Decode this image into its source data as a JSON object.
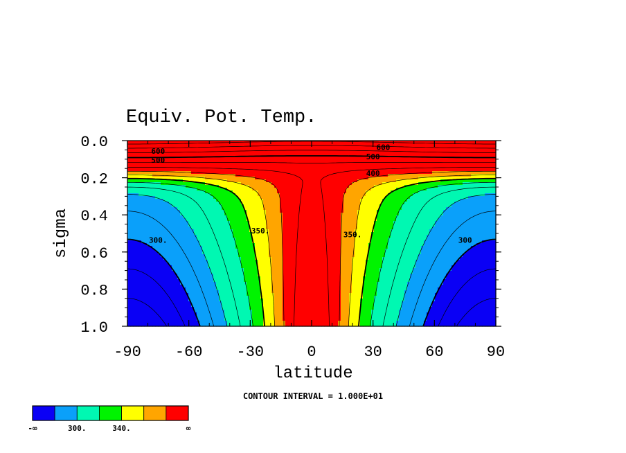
{
  "chart_data": {
    "type": "heatmap",
    "title": "Equiv. Pot. Temp.",
    "xlabel": "latitude",
    "ylabel": "sigma",
    "xlim": [
      -90,
      90
    ],
    "ylim": [
      1.0,
      0.0
    ],
    "x_ticks": [
      "-90",
      "-60",
      "-30",
      "0",
      "30",
      "60",
      "90"
    ],
    "x_tick_values": [
      -90,
      -60,
      -30,
      0,
      30,
      60,
      90
    ],
    "y_ticks": [
      "0.0",
      "0.2",
      "0.4",
      "0.6",
      "0.8",
      "1.0"
    ],
    "y_tick_values": [
      0.0,
      0.2,
      0.4,
      0.6,
      0.8,
      1.0
    ],
    "footer": "CONTOUR INTERVAL = 1.000E+01",
    "contour_labels": [
      {
        "text": "300.",
        "lat": -75,
        "sigma": 0.55
      },
      {
        "text": "350.",
        "lat": -25,
        "sigma": 0.5
      },
      {
        "text": "350.",
        "lat": 20,
        "sigma": 0.52
      },
      {
        "text": "300",
        "lat": 75,
        "sigma": 0.55
      },
      {
        "text": "400",
        "lat": 30,
        "sigma": 0.19
      },
      {
        "text": "500",
        "lat": 30,
        "sigma": 0.1
      },
      {
        "text": "500",
        "lat": -75,
        "sigma": 0.12
      },
      {
        "text": "600",
        "lat": -75,
        "sigma": 0.07
      },
      {
        "text": "600",
        "lat": 35,
        "sigma": 0.05
      }
    ],
    "colorbar": {
      "colors": [
        "#0a00f5",
        "#0aa0fa",
        "#00f8b2",
        "#00f400",
        "#ffff00",
        "#ffa500",
        "#ff0000"
      ],
      "labels": [
        "-∞",
        "300.",
        "340.",
        "∞"
      ],
      "label_positions": [
        0,
        2,
        4,
        7
      ]
    },
    "field": {
      "base": 358,
      "equator_bump": 22,
      "lat_gradient": 70,
      "stratosphere_base": 380,
      "stratosphere_rise": 1200
    }
  }
}
